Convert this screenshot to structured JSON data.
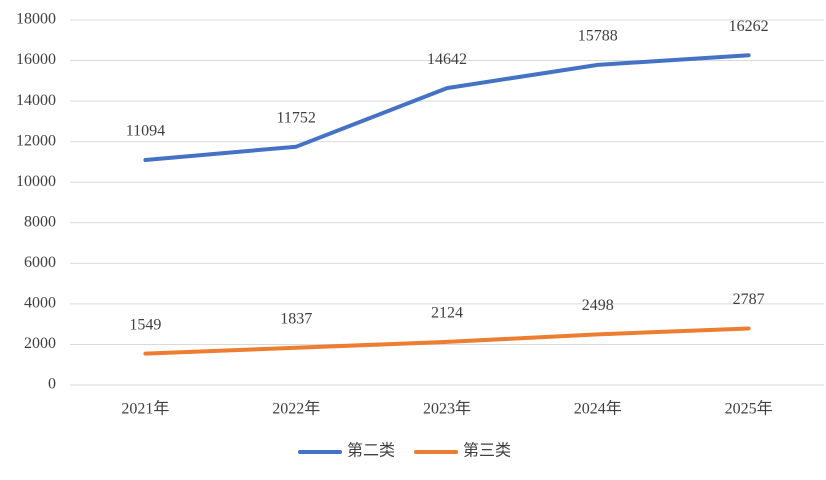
{
  "chart_data": {
    "type": "line",
    "categories": [
      "2021年",
      "2022年",
      "2023年",
      "2024年",
      "2025年"
    ],
    "series": [
      {
        "name": "第二类",
        "color": "#4472c4",
        "values": [
          11094,
          11752,
          14642,
          15788,
          16262
        ]
      },
      {
        "name": "第三类",
        "color": "#ed7d31",
        "values": [
          1549,
          1837,
          2124,
          2498,
          2787
        ]
      }
    ],
    "ylim": [
      0,
      18000
    ],
    "yticks": [
      0,
      2000,
      4000,
      6000,
      8000,
      10000,
      12000,
      14000,
      16000,
      18000
    ],
    "grid": true,
    "legend": "bottom"
  }
}
